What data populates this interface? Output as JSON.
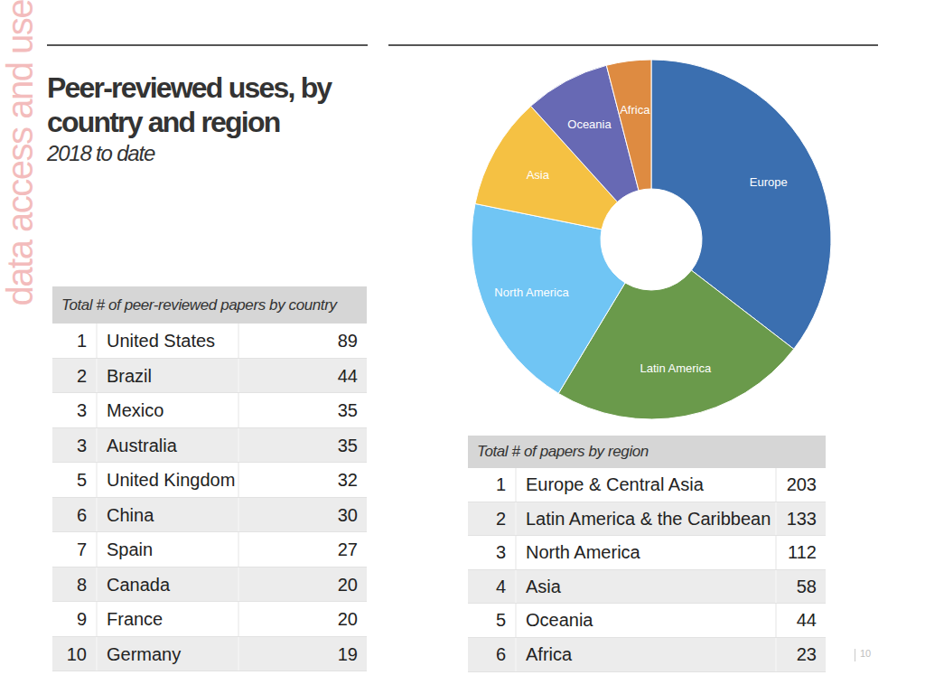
{
  "side_label": "data access and use",
  "title": [
    "Peer-reviewed uses, by",
    "country and region"
  ],
  "subtitle": "2018 to date",
  "country_table": {
    "header": "Total # of peer-reviewed papers by country",
    "rows": [
      {
        "rank": 1,
        "name": "United States",
        "value": 89
      },
      {
        "rank": 2,
        "name": "Brazil",
        "value": 44
      },
      {
        "rank": 3,
        "name": "Mexico",
        "value": 35
      },
      {
        "rank": 3,
        "name": "Australia",
        "value": 35
      },
      {
        "rank": 5,
        "name": "United Kingdom",
        "value": 32
      },
      {
        "rank": 6,
        "name": "China",
        "value": 30
      },
      {
        "rank": 7,
        "name": "Spain",
        "value": 27
      },
      {
        "rank": 8,
        "name": "Canada",
        "value": 20
      },
      {
        "rank": 9,
        "name": "France",
        "value": 20
      },
      {
        "rank": 10,
        "name": "Germany",
        "value": 19
      }
    ]
  },
  "region_table": {
    "header": "Total # of papers by region",
    "rows": [
      {
        "rank": 1,
        "name": "Europe & Central Asia",
        "value": 203
      },
      {
        "rank": 2,
        "name": "Latin America & the Caribbean",
        "value": 133
      },
      {
        "rank": 3,
        "name": "North America",
        "value": 112
      },
      {
        "rank": 4,
        "name": "Asia",
        "value": 58
      },
      {
        "rank": 5,
        "name": "Oceania",
        "value": 44
      },
      {
        "rank": 6,
        "name": "Africa",
        "value": 23
      }
    ]
  },
  "page_number": 10,
  "chart_data": {
    "type": "pie",
    "categories": [
      "Europe",
      "Latin America",
      "North America",
      "Asia",
      "Oceania",
      "Africa"
    ],
    "values": [
      203,
      133,
      112,
      58,
      44,
      23
    ],
    "colors": [
      "#3b6fb0",
      "#6a9a4b",
      "#70c5f4",
      "#f5c143",
      "#6769b4",
      "#de8b41"
    ]
  }
}
